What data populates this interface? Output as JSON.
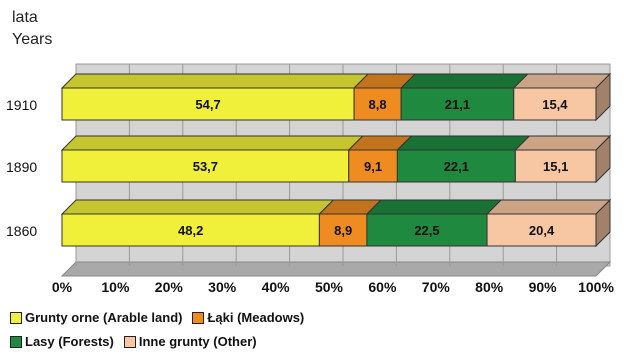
{
  "chart_data": {
    "type": "bar",
    "orientation": "horizontal",
    "stacked": true,
    "percent": true,
    "style": "3d",
    "ylabel_lines": [
      "lata",
      "Years"
    ],
    "categories": [
      "1910",
      "1890",
      "1860"
    ],
    "series": [
      {
        "name": "Grunty orne (Arable land)",
        "color": "#f0f03a",
        "values": [
          54.7,
          53.7,
          48.2
        ],
        "labels": [
          "54,7",
          "53,7",
          "48,2"
        ]
      },
      {
        "name": "Łąki (Meadows)",
        "color": "#ee8c22",
        "values": [
          8.8,
          9.1,
          8.9
        ],
        "labels": [
          "8,8",
          "9,1",
          "8,9"
        ]
      },
      {
        "name": "Lasy (Forests)",
        "color": "#1f8a3f",
        "values": [
          21.1,
          22.1,
          22.5
        ],
        "labels": [
          "21,1",
          "22,1",
          "22,5"
        ]
      },
      {
        "name": "Inne grunty (Other)",
        "color": "#f7c7a3",
        "values": [
          15.4,
          15.1,
          20.4
        ],
        "labels": [
          "15,4",
          "15,1",
          "20,4"
        ]
      }
    ],
    "x_ticks": [
      "0%",
      "10%",
      "20%",
      "30%",
      "40%",
      "50%",
      "60%",
      "70%",
      "80%",
      "90%",
      "100%"
    ],
    "xlim": [
      0,
      100
    ],
    "grid": true,
    "legend_position": "bottom-left"
  }
}
